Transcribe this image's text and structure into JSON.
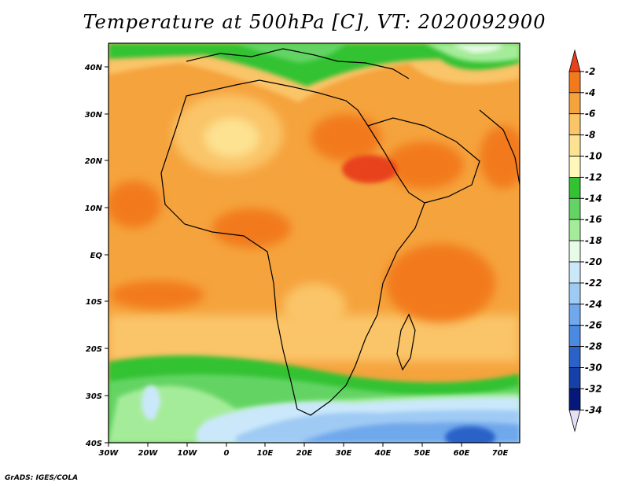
{
  "title": "Temperature at 500hPa [C], VT: 2020092900",
  "footer": "GrADS: IGES/COLA",
  "map": {
    "lon_range": [
      -30,
      75
    ],
    "lat_range": [
      -40,
      45
    ],
    "lat_ticks": [
      "40N",
      "30N",
      "20N",
      "10N",
      "EQ",
      "10S",
      "20S",
      "30S",
      "40S"
    ],
    "lon_ticks": [
      "30W",
      "20W",
      "10W",
      "0",
      "10E",
      "20E",
      "30E",
      "40E",
      "50E",
      "60E",
      "70E"
    ]
  },
  "colorbar": {
    "levels": [
      "-2",
      "-4",
      "-6",
      "-8",
      "-10",
      "-12",
      "-14",
      "-16",
      "-18",
      "-20",
      "-22",
      "-24",
      "-26",
      "-28",
      "-30",
      "-32",
      "-34"
    ],
    "colors": [
      "#e8421a",
      "#f27a1a",
      "#f5a33d",
      "#fac468",
      "#fde292",
      "#fff6bc",
      "#32c232",
      "#63d463",
      "#a5ec9a",
      "#e8fae8",
      "#cbe8fb",
      "#9fcaf4",
      "#6fa8ec",
      "#4a8ae0",
      "#2b62c8",
      "#1440a8",
      "#06187a",
      "#e6e0f6"
    ]
  }
}
